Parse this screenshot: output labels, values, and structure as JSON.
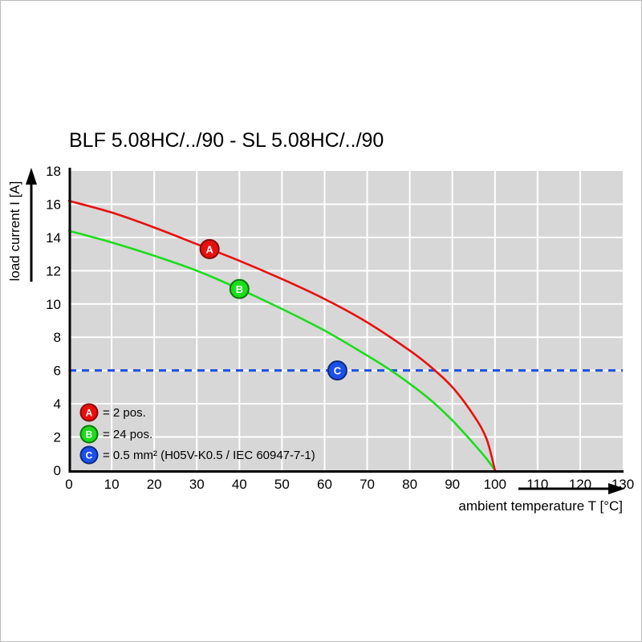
{
  "chart_data": {
    "type": "line",
    "title": "BLF 5.08HC/../90 - SL 5.08HC/../90",
    "xlabel": "ambient temperature T [°C]",
    "ylabel": "load current I [A]",
    "xlim": [
      0,
      130
    ],
    "ylim": [
      0,
      18
    ],
    "xticks": [
      0,
      10,
      20,
      30,
      40,
      50,
      60,
      70,
      80,
      90,
      100,
      110,
      120,
      130
    ],
    "yticks": [
      0,
      2,
      4,
      6,
      8,
      10,
      12,
      14,
      16,
      18
    ],
    "grid": true,
    "legend_position": "lower-left-inside",
    "plot_bg": "#d7d7d7",
    "grid_color": "#ffffff",
    "axis_color": "#000000",
    "series": [
      {
        "id": "A",
        "legend": "= 2 pos.",
        "type": "curve",
        "color": "#e8100c",
        "edge": "#8a0808",
        "marker": [
          33,
          13.3
        ],
        "points": [
          [
            0,
            16.2
          ],
          [
            10,
            15.5
          ],
          [
            20,
            14.6
          ],
          [
            30,
            13.6
          ],
          [
            33,
            13.3
          ],
          [
            40,
            12.6
          ],
          [
            50,
            11.5
          ],
          [
            60,
            10.3
          ],
          [
            70,
            8.9
          ],
          [
            80,
            7.2
          ],
          [
            85,
            6.2
          ],
          [
            90,
            5.0
          ],
          [
            95,
            3.3
          ],
          [
            98,
            1.9
          ],
          [
            100,
            0
          ]
        ]
      },
      {
        "id": "B",
        "legend": "= 24 pos.",
        "type": "curve",
        "color": "#1bdd1b",
        "edge": "#0a7a0a",
        "marker": [
          40,
          10.9
        ],
        "points": [
          [
            0,
            14.4
          ],
          [
            10,
            13.7
          ],
          [
            20,
            12.9
          ],
          [
            30,
            12.0
          ],
          [
            40,
            10.9
          ],
          [
            50,
            9.7
          ],
          [
            60,
            8.4
          ],
          [
            70,
            6.9
          ],
          [
            75,
            6.1
          ],
          [
            80,
            5.2
          ],
          [
            85,
            4.2
          ],
          [
            90,
            3.0
          ],
          [
            95,
            1.6
          ],
          [
            98,
            0.7
          ],
          [
            100,
            0
          ]
        ]
      },
      {
        "id": "C",
        "legend": "= 0.5 mm² (H05V-K0.5 / IEC 60947-7-1)",
        "type": "hline",
        "color": "#1d50e8",
        "edge": "#0b2a80",
        "y": 6,
        "dash": [
          9,
          7
        ],
        "marker": [
          63,
          6
        ]
      }
    ]
  }
}
